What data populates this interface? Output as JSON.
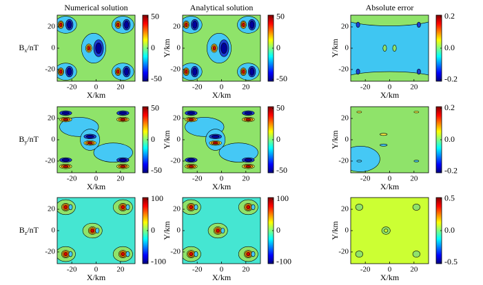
{
  "chart_data": [
    {
      "type": "contour",
      "title": "Numerical solution",
      "ylabel_parts": [
        "B",
        "x",
        "/nT"
      ],
      "xlabel": "X/km",
      "xlim": [
        -32,
        32
      ],
      "xticks": [
        -20,
        0,
        20
      ],
      "ylim": [
        -31,
        31
      ],
      "yticks": [
        -20,
        0,
        20
      ],
      "clim": [
        -53,
        53
      ],
      "cticks": [
        -50,
        0,
        50
      ],
      "background": "#8fe36a"
    },
    {
      "type": "contour",
      "title": "Analytical solution",
      "ylabel": "Y/km",
      "xlabel": "X/km",
      "xlim": [
        -32,
        32
      ],
      "xticks": [
        -20,
        0,
        20
      ],
      "ylim": [
        -31,
        31
      ],
      "yticks": [
        -20,
        0,
        20
      ],
      "clim": [
        -53,
        53
      ],
      "cticks": [
        -50,
        0,
        50
      ],
      "background": "#8fe36a"
    },
    {
      "type": "contour",
      "title": "Absolute error",
      "ylabel": "Y/km",
      "xlabel": "X/km",
      "xlim": [
        -32,
        32
      ],
      "xticks": [
        -20,
        0,
        20
      ],
      "ylim": [
        -31,
        31
      ],
      "yticks": [
        -20,
        0,
        20
      ],
      "clim": [
        -0.21,
        0.21
      ],
      "cticks": [
        -0.2,
        {
          "value": 0,
          "label": "0.0"
        },
        0.2
      ],
      "background": "#3fc6f2"
    },
    {
      "type": "contour",
      "ylabel_parts": [
        "B",
        "y",
        "/nT"
      ],
      "xlabel": "X/km",
      "xlim": [
        -32,
        32
      ],
      "xticks": [
        -20,
        0,
        20
      ],
      "ylim": [
        -31,
        31
      ],
      "yticks": [
        -20,
        0,
        20
      ],
      "clim": [
        -53,
        53
      ],
      "cticks": [
        -50,
        0,
        50
      ],
      "background": "#8fe36a"
    },
    {
      "type": "contour",
      "ylabel": "Y/km",
      "xlabel": "X/km",
      "xlim": [
        -32,
        32
      ],
      "xticks": [
        -20,
        0,
        20
      ],
      "ylim": [
        -31,
        31
      ],
      "yticks": [
        -20,
        0,
        20
      ],
      "clim": [
        -53,
        53
      ],
      "cticks": [
        -50,
        0,
        50
      ],
      "background": "#8fe36a"
    },
    {
      "type": "contour",
      "ylabel": "Y/km",
      "xlabel": "X/km",
      "xlim": [
        -32,
        32
      ],
      "xticks": [
        -20,
        0,
        20
      ],
      "ylim": [
        -31,
        31
      ],
      "yticks": [
        -20,
        0,
        20
      ],
      "clim": [
        -0.21,
        0.21
      ],
      "cticks": [
        -0.2,
        {
          "value": 0,
          "label": "0.0"
        },
        0.2
      ],
      "background": "#8fe36a"
    },
    {
      "type": "contour",
      "ylabel_parts": [
        "B",
        "z",
        "/nT"
      ],
      "xlabel": "X/km",
      "xlim": [
        -32,
        32
      ],
      "xticks": [
        -20,
        0,
        20
      ],
      "ylim": [
        -31,
        31
      ],
      "yticks": [
        -20,
        0,
        20
      ],
      "clim": [
        -105,
        105
      ],
      "cticks": [
        -100,
        0,
        100
      ],
      "background": "#45e6d2"
    },
    {
      "type": "contour",
      "ylabel": "Y/km",
      "xlabel": "X/km",
      "xlim": [
        -32,
        32
      ],
      "xticks": [
        -20,
        0,
        20
      ],
      "ylim": [
        -31,
        31
      ],
      "yticks": [
        -20,
        0,
        20
      ],
      "clim": [
        -105,
        105
      ],
      "cticks": [
        -100,
        0,
        100
      ],
      "background": "#45e6d2"
    },
    {
      "type": "contour",
      "ylabel": "Y/km",
      "xlabel": "X/km",
      "xlim": [
        -32,
        32
      ],
      "xticks": [
        -20,
        0,
        20
      ],
      "ylim": [
        -31,
        31
      ],
      "yticks": [
        -20,
        0,
        20
      ],
      "clim": [
        -0.52,
        0.52
      ],
      "cticks": [
        -0.5,
        {
          "value": 0,
          "label": "0.0"
        },
        0.5
      ],
      "background": "#ccff33"
    }
  ]
}
